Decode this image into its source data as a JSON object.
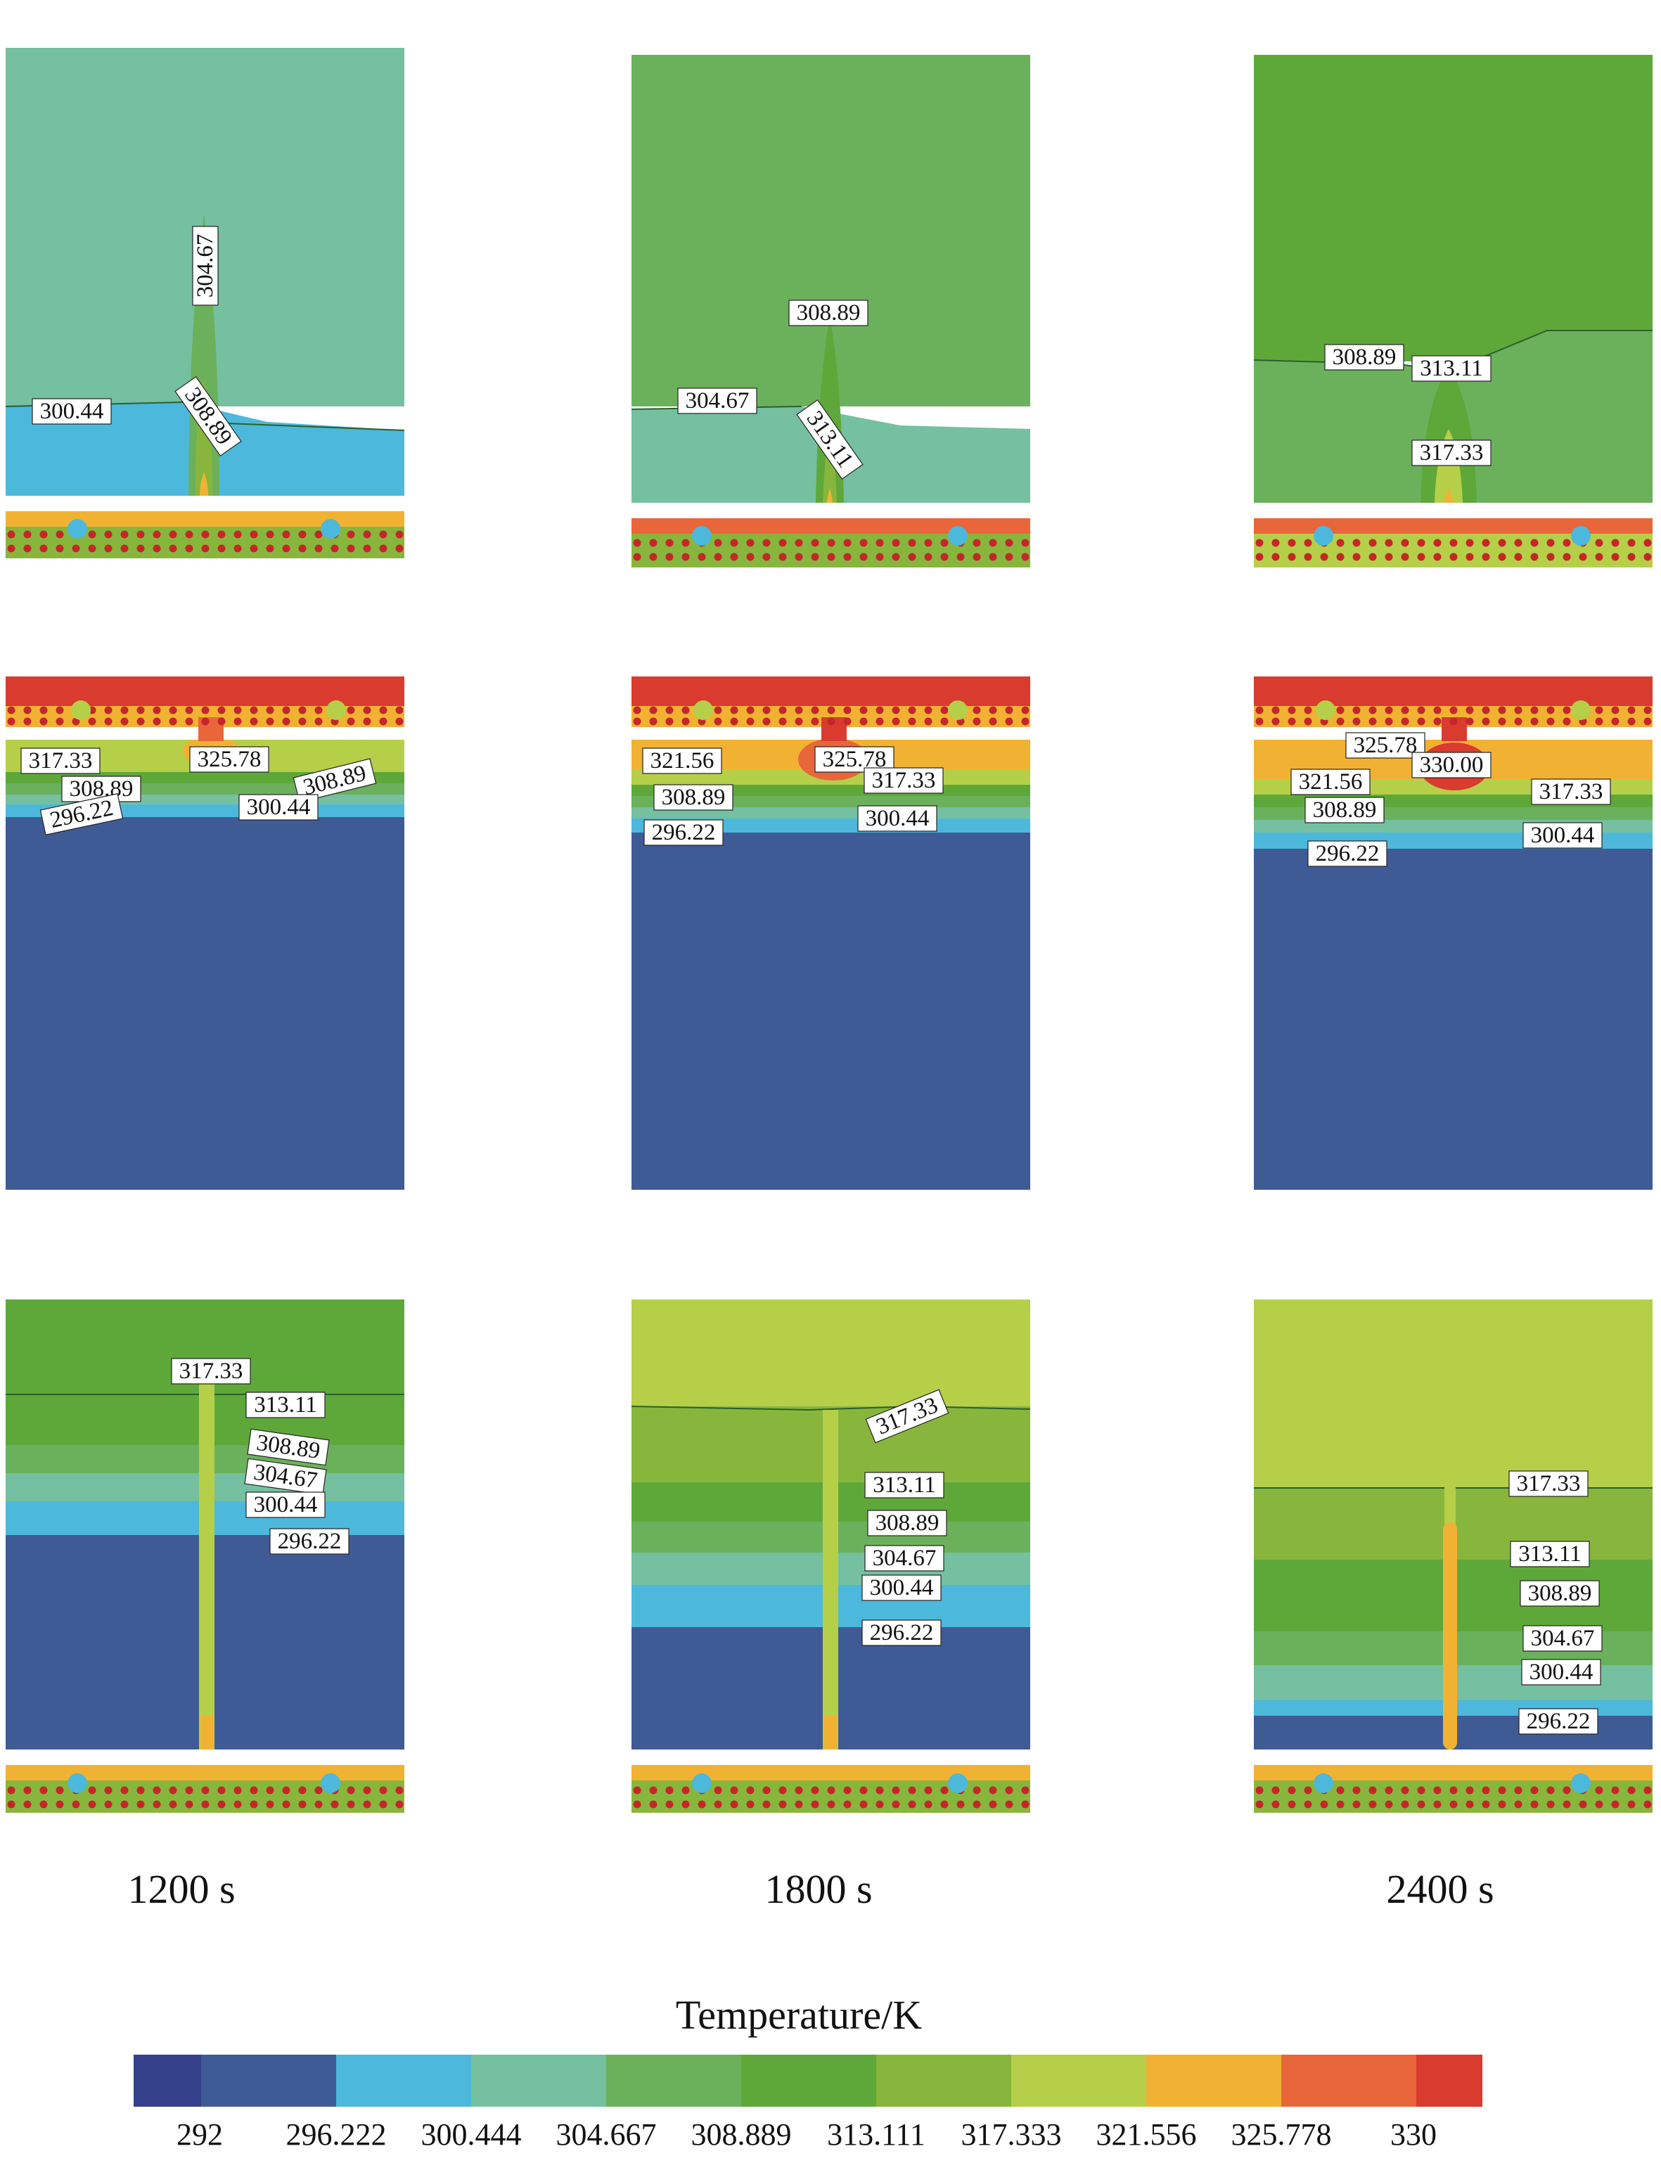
{
  "colors": {
    "c0": "#34418a",
    "c1": "#3f5b96",
    "c2": "#4cb8dc",
    "c3": "#74c0a0",
    "c4": "#6bb15c",
    "c5": "#5ea83a",
    "c6": "#88b63c",
    "c7": "#b6cf48",
    "c8": "#f1b233",
    "c9": "#e8663a",
    "c10": "#d93b2f"
  },
  "time_labels": [
    "1200 s",
    "1800 s",
    "2400 s"
  ],
  "colorbar": {
    "title": "Temperature/K",
    "ticks": [
      "292",
      "296.222",
      "300.444",
      "304.667",
      "308.889",
      "313.111",
      "317.333",
      "321.556",
      "325.778",
      "330"
    ]
  },
  "panels": {
    "r0c0": {
      "labels": [
        "304.67",
        "300.44",
        "308.89"
      ]
    },
    "r0c1": {
      "labels": [
        "308.89",
        "304.67",
        "313.11"
      ]
    },
    "r0c2": {
      "labels": [
        "308.89",
        "313.11",
        "317.33"
      ]
    },
    "r1c0": {
      "labels": [
        "317.33",
        "325.78",
        "308.89",
        "308.89",
        "296.22",
        "300.44"
      ]
    },
    "r1c1": {
      "labels": [
        "321.56",
        "325.78",
        "317.33",
        "308.89",
        "296.22",
        "300.44"
      ]
    },
    "r1c2": {
      "labels": [
        "325.78",
        "321.56",
        "330.00",
        "317.33",
        "308.89",
        "300.44",
        "296.22"
      ]
    },
    "r2c0": {
      "labels": [
        "317.33",
        "313.11",
        "308.89",
        "304.67",
        "300.44",
        "296.22"
      ]
    },
    "r2c1": {
      "labels": [
        "317.33",
        "313.11",
        "308.89",
        "304.67",
        "300.44",
        "296.22"
      ]
    },
    "r2c2": {
      "labels": [
        "317.33",
        "313.11",
        "308.89",
        "304.67",
        "300.44",
        "296.22"
      ]
    }
  }
}
